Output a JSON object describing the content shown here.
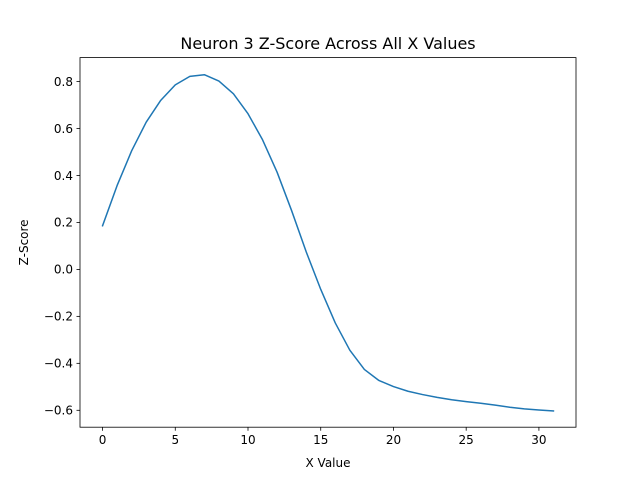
{
  "chart_data": {
    "type": "line",
    "title": "Neuron 3 Z-Score Across All X Values",
    "xlabel": "X Value",
    "ylabel": "Z-Score",
    "xlim": [
      -1.55,
      32.55
    ],
    "ylim": [
      -0.672,
      0.902
    ],
    "xticks": [
      0,
      5,
      10,
      15,
      20,
      25,
      30
    ],
    "yticks": [
      -0.6,
      -0.4,
      -0.2,
      0.0,
      0.2,
      0.4,
      0.6,
      0.8
    ],
    "grid": false,
    "line_color": "#1f77b4",
    "series": [
      {
        "x": [
          0,
          1,
          2,
          3,
          4,
          5,
          6,
          7,
          8,
          9,
          10,
          11,
          12,
          13,
          14,
          15,
          16,
          17,
          18,
          19,
          20,
          21,
          22,
          23,
          24,
          25,
          26,
          27,
          28,
          29,
          30,
          31
        ],
        "values": [
          0.186,
          0.357,
          0.505,
          0.627,
          0.72,
          0.786,
          0.822,
          0.829,
          0.802,
          0.748,
          0.663,
          0.552,
          0.414,
          0.25,
          0.075,
          -0.085,
          -0.228,
          -0.344,
          -0.426,
          -0.473,
          -0.499,
          -0.519,
          -0.533,
          -0.545,
          -0.555,
          -0.563,
          -0.57,
          -0.578,
          -0.587,
          -0.594,
          -0.599,
          -0.603
        ]
      }
    ]
  }
}
